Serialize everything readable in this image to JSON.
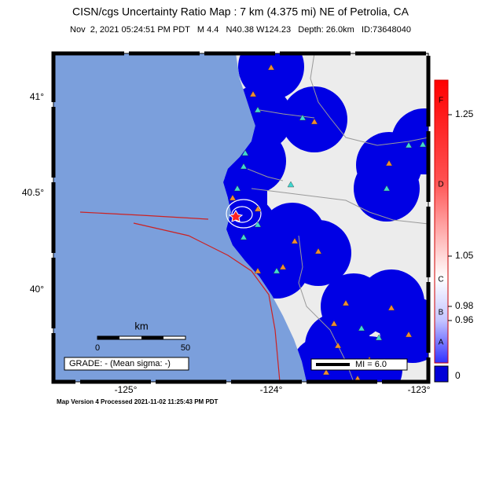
{
  "header": {
    "title": "CISN/cgs Uncertainty Ratio Map : 7 km (4.375 mi) NE of Petrolia, CA",
    "subtitle": "Nov  2, 2021 05:24:51 PM PDT   M 4.4   N40.38 W124.23   Depth: 26.0km   ID:73648040"
  },
  "map": {
    "lat_labels": [
      "41°",
      "40.5°",
      "40°"
    ],
    "lon_labels": [
      "-125°",
      "-124°",
      "-123°"
    ],
    "scale_bar": {
      "unit": "km",
      "start": 0,
      "end": 50
    },
    "grade": "GRADE: - (Mean sigma: -)",
    "mi_legend": "MI = 6.0"
  },
  "colorbar": {
    "letters": [
      "F",
      "D",
      "C",
      "B",
      "A"
    ],
    "ticks": [
      1.25,
      1.05,
      0.98,
      0.96
    ],
    "zero": 0
  },
  "footer": "Map Version 4 Processed 2021-11-02 11:25:43 PM PDT"
}
